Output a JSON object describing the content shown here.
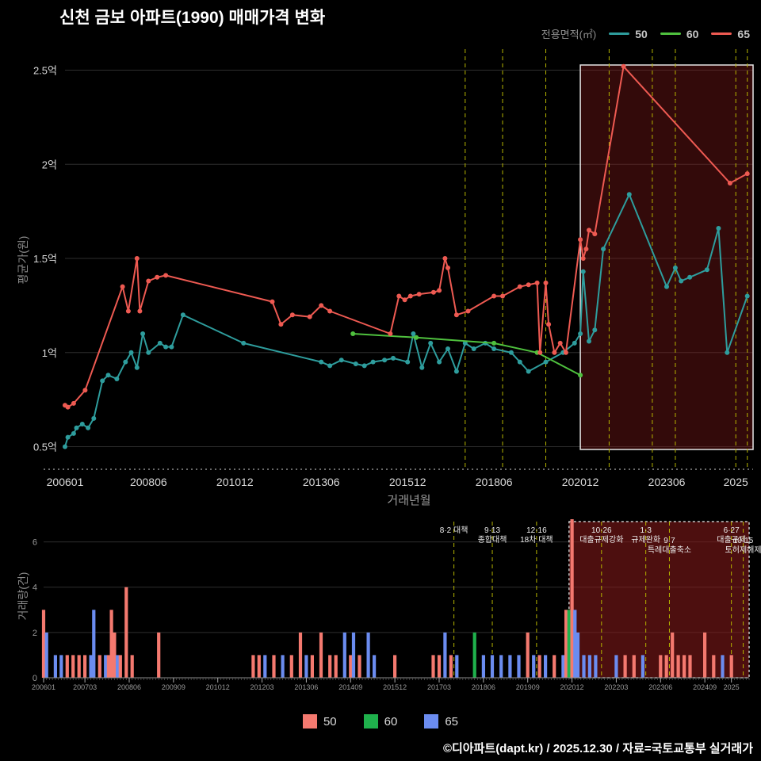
{
  "title": "신천 금보 아파트(1990) 매매가격 변화",
  "footer": "©디아파트(dapt.kr) / 2025.12.30 / 자료=국토교통부 실거래가",
  "legend_top": {
    "label": "전용면적(㎡)",
    "items": [
      {
        "label": "50",
        "color": "#2e9d9d"
      },
      {
        "label": "60",
        "color": "#4fc13e"
      },
      {
        "label": "65",
        "color": "#ee5a52"
      }
    ]
  },
  "legend_bottom": {
    "items": [
      {
        "label": "50",
        "color": "#f4796f"
      },
      {
        "label": "60",
        "color": "#1fb14c"
      },
      {
        "label": "65",
        "color": "#6b8cf0"
      }
    ]
  },
  "chart_data": [
    {
      "type": "line",
      "title": "신천 금보 아파트(1990) 매매가격 변화",
      "xlabel": "거래년월",
      "ylabel": "평균가(원)",
      "legend_position": "top-right",
      "grid": true,
      "ylim": [
        0.38,
        2.62
      ],
      "x_months": [
        "200601",
        "202512"
      ],
      "y_ticks": [
        {
          "label": "0.5억",
          "value": 0.5
        },
        {
          "label": "1억",
          "value": 1.0
        },
        {
          "label": "1.5억",
          "value": 1.5
        },
        {
          "label": "2억",
          "value": 2.0
        },
        {
          "label": "2.5억",
          "value": 2.5
        }
      ],
      "x_ticks": [
        {
          "label": "200601",
          "month": "200601"
        },
        {
          "label": "200806",
          "month": "200806"
        },
        {
          "label": "201012",
          "month": "201012"
        },
        {
          "label": "201306",
          "month": "201306"
        },
        {
          "label": "201512",
          "month": "201512"
        },
        {
          "label": "201806",
          "month": "201806"
        },
        {
          "label": "202012",
          "month": "202012"
        },
        {
          "label": "202306",
          "month": "202306"
        },
        {
          "label": "2025",
          "month": "202506"
        }
      ],
      "highlight": {
        "from": "202012",
        "to": "202512"
      },
      "events": [
        {
          "month": "201708",
          "lines": [
            "8·2 대책"
          ],
          "row": 0
        },
        {
          "month": "201809",
          "lines": [
            "9·13",
            "종합대책"
          ],
          "row": 0
        },
        {
          "month": "201912",
          "lines": [
            "12·16",
            "18차 대책"
          ],
          "row": 0
        },
        {
          "month": "202110",
          "lines": [
            "10·26",
            "대출규제강화"
          ],
          "row": 0
        },
        {
          "month": "202301",
          "lines": [
            "1·3",
            "규제완화"
          ],
          "row": 0
        },
        {
          "month": "202309",
          "lines": [
            "9·7",
            "특례대출축소"
          ],
          "row": 1
        },
        {
          "month": "202506",
          "lines": [
            "6·27",
            "대출규제"
          ],
          "row": 0
        },
        {
          "month": "202510",
          "lines": [
            "10·15",
            "토허제해제"
          ],
          "row": 1
        }
      ],
      "series": [
        {
          "name": "50",
          "color": "#2e9d9d",
          "points": [
            [
              "200601",
              0.5
            ],
            [
              "200602",
              0.55
            ],
            [
              "200604",
              0.57
            ],
            [
              "200605",
              0.6
            ],
            [
              "200607",
              0.62
            ],
            [
              "200609",
              0.6
            ],
            [
              "200611",
              0.65
            ],
            [
              "200702",
              0.85
            ],
            [
              "200704",
              0.88
            ],
            [
              "200707",
              0.86
            ],
            [
              "200710",
              0.95
            ],
            [
              "200712",
              1.0
            ],
            [
              "200802",
              0.92
            ],
            [
              "200804",
              1.1
            ],
            [
              "200806",
              1.0
            ],
            [
              "200810",
              1.05
            ],
            [
              "200812",
              1.03
            ],
            [
              "200902",
              1.03
            ],
            [
              "200906",
              1.2
            ],
            [
              "201103",
              1.05
            ],
            [
              "201306",
              0.95
            ],
            [
              "201309",
              0.93
            ],
            [
              "201401",
              0.96
            ],
            [
              "201406",
              0.94
            ],
            [
              "201409",
              0.93
            ],
            [
              "201412",
              0.95
            ],
            [
              "201504",
              0.96
            ],
            [
              "201507",
              0.97
            ],
            [
              "201512",
              0.95
            ],
            [
              "201602",
              1.1
            ],
            [
              "201605",
              0.92
            ],
            [
              "201608",
              1.05
            ],
            [
              "201611",
              0.95
            ],
            [
              "201702",
              1.02
            ],
            [
              "201705",
              0.9
            ],
            [
              "201708",
              1.05
            ],
            [
              "201711",
              1.02
            ],
            [
              "201803",
              1.05
            ],
            [
              "201806",
              1.02
            ],
            [
              "201812",
              1.0
            ],
            [
              "201903",
              0.95
            ],
            [
              "201906",
              0.9
            ],
            [
              "201912",
              0.95
            ],
            [
              "202006",
              1.0
            ],
            [
              "202010",
              1.05
            ],
            [
              "202012",
              1.1
            ],
            [
              "202101",
              1.43
            ],
            [
              "202103",
              1.06
            ],
            [
              "202105",
              1.12
            ],
            [
              "202108",
              1.55
            ],
            [
              "202205",
              1.84
            ],
            [
              "202306",
              1.35
            ],
            [
              "202309",
              1.45
            ],
            [
              "202311",
              1.38
            ],
            [
              "202402",
              1.4
            ],
            [
              "202408",
              1.44
            ],
            [
              "202412",
              1.66
            ],
            [
              "202503",
              1.0
            ],
            [
              "202510",
              1.3
            ]
          ]
        },
        {
          "name": "60",
          "color": "#4fc13e",
          "points": [
            [
              "201405",
              1.1
            ],
            [
              "201603",
              1.08
            ],
            [
              "201806",
              1.05
            ],
            [
              "201909",
              1.0
            ],
            [
              "202012",
              0.88
            ]
          ]
        },
        {
          "name": "65",
          "color": "#ee5a52",
          "points": [
            [
              "200601",
              0.72
            ],
            [
              "200602",
              0.71
            ],
            [
              "200604",
              0.73
            ],
            [
              "200608",
              0.8
            ],
            [
              "200709",
              1.35
            ],
            [
              "200711",
              1.22
            ],
            [
              "200802",
              1.5
            ],
            [
              "200803",
              1.22
            ],
            [
              "200806",
              1.38
            ],
            [
              "200809",
              1.4
            ],
            [
              "200812",
              1.41
            ],
            [
              "201201",
              1.27
            ],
            [
              "201204",
              1.15
            ],
            [
              "201208",
              1.2
            ],
            [
              "201302",
              1.19
            ],
            [
              "201306",
              1.25
            ],
            [
              "201309",
              1.22
            ],
            [
              "201506",
              1.1
            ],
            [
              "201509",
              1.3
            ],
            [
              "201511",
              1.28
            ],
            [
              "201601",
              1.3
            ],
            [
              "201604",
              1.31
            ],
            [
              "201609",
              1.32
            ],
            [
              "201611",
              1.33
            ],
            [
              "201701",
              1.5
            ],
            [
              "201702",
              1.45
            ],
            [
              "201705",
              1.2
            ],
            [
              "201709",
              1.22
            ],
            [
              "201806",
              1.3
            ],
            [
              "201809",
              1.3
            ],
            [
              "201903",
              1.35
            ],
            [
              "201906",
              1.36
            ],
            [
              "201909",
              1.37
            ],
            [
              "201910",
              1.0
            ],
            [
              "201912",
              1.37
            ],
            [
              "202001",
              1.15
            ],
            [
              "202003",
              1.0
            ],
            [
              "202005",
              1.05
            ],
            [
              "202007",
              1.0
            ],
            [
              "202012",
              1.6
            ],
            [
              "202101",
              1.5
            ],
            [
              "202102",
              1.55
            ],
            [
              "202103",
              1.65
            ],
            [
              "202105",
              1.63
            ],
            [
              "202203",
              2.52
            ],
            [
              "202504",
              1.9
            ],
            [
              "202510",
              1.95
            ]
          ]
        }
      ]
    },
    {
      "type": "bar",
      "ylabel": "거래량(건)",
      "grid": true,
      "ylim": [
        0,
        7
      ],
      "y_ticks": [
        0,
        2,
        4,
        6
      ],
      "x_ticks": [
        {
          "label": "200601",
          "month": "200601"
        },
        {
          "label": "200703",
          "month": "200703"
        },
        {
          "label": "200806",
          "month": "200806"
        },
        {
          "label": "200909",
          "month": "200909"
        },
        {
          "label": "201012",
          "month": "201012"
        },
        {
          "label": "201203",
          "month": "201203"
        },
        {
          "label": "201306",
          "month": "201306"
        },
        {
          "label": "201409",
          "month": "201409"
        },
        {
          "label": "201512",
          "month": "201512"
        },
        {
          "label": "201703",
          "month": "201703"
        },
        {
          "label": "201806",
          "month": "201806"
        },
        {
          "label": "201909",
          "month": "201909"
        },
        {
          "label": "202012",
          "month": "202012"
        },
        {
          "label": "202203",
          "month": "202203"
        },
        {
          "label": "202306",
          "month": "202306"
        },
        {
          "label": "202409",
          "month": "202409"
        },
        {
          "label": "2025",
          "month": "202506"
        }
      ],
      "colors": {
        "50": "#f4796f",
        "60": "#1fb14c",
        "65": "#6b8cf0"
      },
      "highlight": {
        "from": "202011",
        "to": "202512"
      },
      "bars": [
        [
          "200601",
          3,
          "50"
        ],
        [
          "200602",
          2,
          "65"
        ],
        [
          "200605",
          1,
          "65"
        ],
        [
          "200607",
          1,
          "65"
        ],
        [
          "200609",
          1,
          "50"
        ],
        [
          "200611",
          1,
          "50"
        ],
        [
          "200701",
          1,
          "50"
        ],
        [
          "200703",
          1,
          "50"
        ],
        [
          "200705",
          1,
          "65"
        ],
        [
          "200706",
          3,
          "65"
        ],
        [
          "200708",
          1,
          "50"
        ],
        [
          "200710",
          1,
          "65"
        ],
        [
          "200711",
          1,
          "50"
        ],
        [
          "200712",
          3,
          "50"
        ],
        [
          "200801",
          2,
          "50"
        ],
        [
          "200802",
          1,
          "65"
        ],
        [
          "200803",
          1,
          "50"
        ],
        [
          "200805",
          4,
          "50"
        ],
        [
          "200807",
          1,
          "50"
        ],
        [
          "200904",
          2,
          "50"
        ],
        [
          "201112",
          1,
          "50"
        ],
        [
          "201202",
          1,
          "50"
        ],
        [
          "201204",
          1,
          "65"
        ],
        [
          "201207",
          1,
          "50"
        ],
        [
          "201210",
          1,
          "65"
        ],
        [
          "201301",
          1,
          "50"
        ],
        [
          "201304",
          2,
          "50"
        ],
        [
          "201306",
          1,
          "65"
        ],
        [
          "201308",
          1,
          "50"
        ],
        [
          "201311",
          2,
          "50"
        ],
        [
          "201402",
          1,
          "50"
        ],
        [
          "201404",
          1,
          "50"
        ],
        [
          "201407",
          2,
          "65"
        ],
        [
          "201409",
          1,
          "50"
        ],
        [
          "201410",
          2,
          "65"
        ],
        [
          "201412",
          1,
          "50"
        ],
        [
          "201503",
          2,
          "65"
        ],
        [
          "201505",
          1,
          "65"
        ],
        [
          "201512",
          1,
          "50"
        ],
        [
          "201701",
          1,
          "50"
        ],
        [
          "201703",
          1,
          "50"
        ],
        [
          "201705",
          2,
          "65"
        ],
        [
          "201707",
          1,
          "50"
        ],
        [
          "201709",
          1,
          "65"
        ],
        [
          "201803",
          2,
          "60"
        ],
        [
          "201806",
          1,
          "65"
        ],
        [
          "201809",
          1,
          "65"
        ],
        [
          "201812",
          1,
          "65"
        ],
        [
          "201903",
          1,
          "65"
        ],
        [
          "201906",
          1,
          "65"
        ],
        [
          "201909",
          2,
          "50"
        ],
        [
          "201911",
          1,
          "65"
        ],
        [
          "202001",
          1,
          "50"
        ],
        [
          "202003",
          1,
          "65"
        ],
        [
          "202006",
          1,
          "50"
        ],
        [
          "202009",
          1,
          "65"
        ],
        [
          "202010",
          3,
          "50"
        ],
        [
          "202011",
          3,
          "60"
        ],
        [
          "202012",
          7,
          "50"
        ],
        [
          "202101",
          3,
          "65"
        ],
        [
          "202102",
          2,
          "65"
        ],
        [
          "202104",
          1,
          "65"
        ],
        [
          "202106",
          1,
          "65"
        ],
        [
          "202108",
          1,
          "65"
        ],
        [
          "202203",
          1,
          "65"
        ],
        [
          "202206",
          1,
          "50"
        ],
        [
          "202209",
          1,
          "50"
        ],
        [
          "202212",
          1,
          "65"
        ],
        [
          "202306",
          1,
          "50"
        ],
        [
          "202308",
          1,
          "50"
        ],
        [
          "202310",
          2,
          "50"
        ],
        [
          "202312",
          1,
          "50"
        ],
        [
          "202402",
          1,
          "50"
        ],
        [
          "202404",
          1,
          "50"
        ],
        [
          "202409",
          2,
          "50"
        ],
        [
          "202412",
          1,
          "50"
        ],
        [
          "202503",
          1,
          "65"
        ],
        [
          "202506",
          1,
          "50"
        ]
      ]
    }
  ]
}
